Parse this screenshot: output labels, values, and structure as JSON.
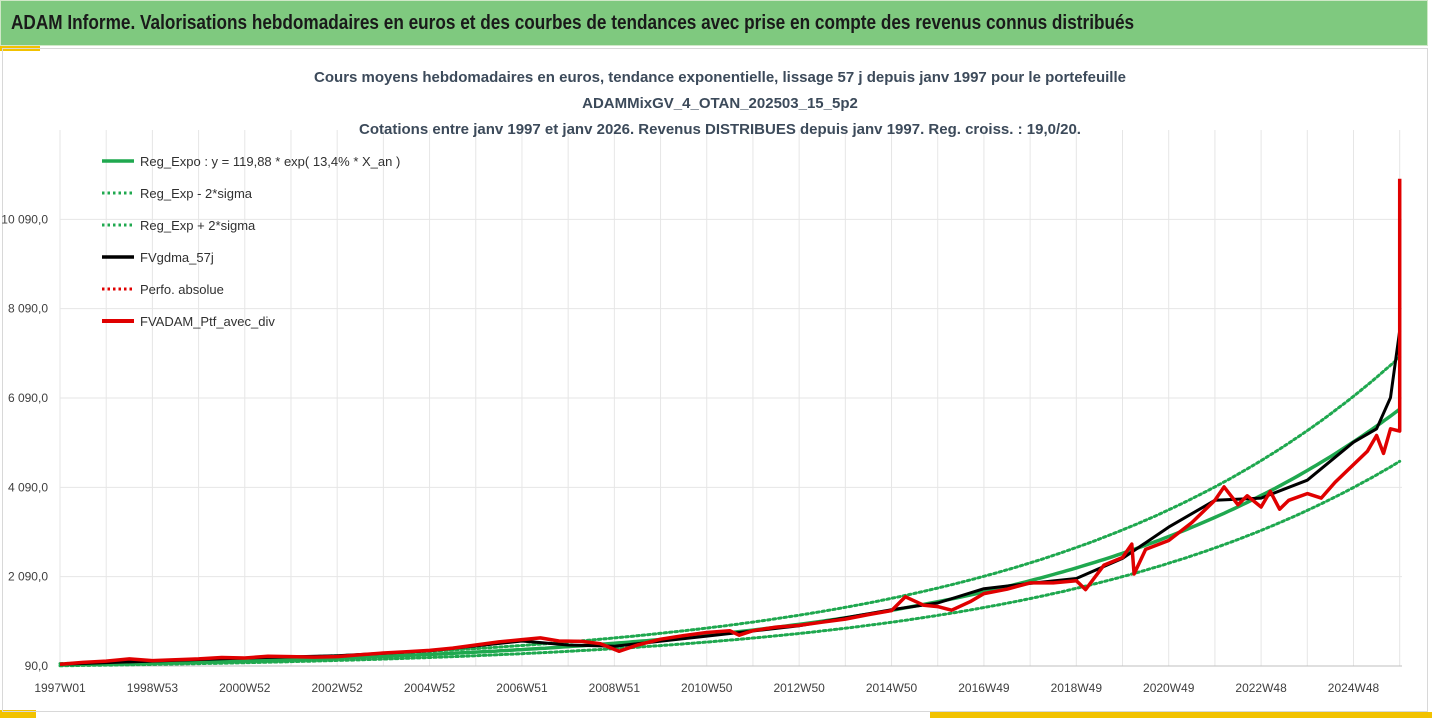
{
  "header": {
    "title": "ADAM Informe. Valorisations hebdomadaires en euros et des courbes de tendances avec prise en compte des revenus connus distribués"
  },
  "colors": {
    "green": "#1fa84f",
    "black": "#000000",
    "red": "#e00000",
    "header_bg": "#7fc97f",
    "accent": "#f2c200"
  },
  "chart_data": {
    "type": "line",
    "title_lines": [
      "Cours moyens hebdomadaires  en euros, tendance exponentielle, lissage 57 j depuis janv 1997 pour le portefeuille",
      "ADAMMixGV_4_OTAN_202503_15_5p2",
      "Cotations entre janv 1997 et janv 2026. Revenus DISTRIBUES depuis janv 1997. Reg. croiss. : 19,0/20."
    ],
    "x_range_years": [
      1997.0,
      2026.05
    ],
    "ylim": [
      90,
      12090
    ],
    "y_ticks": [
      {
        "value": 90,
        "label": "90,0"
      },
      {
        "value": 2090,
        "label": "2 090,0"
      },
      {
        "value": 4090,
        "label": "4 090,0"
      },
      {
        "value": 6090,
        "label": "6 090,0"
      },
      {
        "value": 8090,
        "label": "8 090,0"
      },
      {
        "value": 10090,
        "label": "10 090,0"
      }
    ],
    "x_ticks": [
      {
        "t": 1997.0,
        "label": "1997W01"
      },
      {
        "t": 1999.0,
        "label": "1998W53"
      },
      {
        "t": 2001.0,
        "label": "2000W52"
      },
      {
        "t": 2003.0,
        "label": "2002W52"
      },
      {
        "t": 2005.0,
        "label": "2004W52"
      },
      {
        "t": 2007.0,
        "label": "2006W51"
      },
      {
        "t": 2009.0,
        "label": "2008W51"
      },
      {
        "t": 2011.0,
        "label": "2010W50"
      },
      {
        "t": 2013.0,
        "label": "2012W50"
      },
      {
        "t": 2015.0,
        "label": "2014W50"
      },
      {
        "t": 2017.0,
        "label": "2016W49"
      },
      {
        "t": 2019.0,
        "label": "2018W49"
      },
      {
        "t": 2021.0,
        "label": "2020W49"
      },
      {
        "t": 2023.0,
        "label": "2022W48"
      },
      {
        "t": 2025.0,
        "label": "2024W48"
      }
    ],
    "grid": true,
    "legend_position": "top-left",
    "series": [
      {
        "name": "Reg_Expo : y = 119,88 * exp( 13,4% *  X_an )",
        "style": "solid-green",
        "formula": {
          "a": 119.88,
          "r": 0.134
        }
      },
      {
        "name": "Reg_Exp - 2*sigma",
        "style": "dotted-green",
        "factor": 0.8
      },
      {
        "name": "Reg_Exp + 2*sigma",
        "style": "dotted-green",
        "factor": 1.2
      },
      {
        "name": "FVgdma_57j",
        "style": "solid-black",
        "points": [
          [
            1997.0,
            130
          ],
          [
            1999.0,
            200
          ],
          [
            2001.0,
            270
          ],
          [
            2003.0,
            320
          ],
          [
            2005.0,
            430
          ],
          [
            2007.0,
            650
          ],
          [
            2008.0,
            560
          ],
          [
            2009.0,
            530
          ],
          [
            2011.0,
            760
          ],
          [
            2013.0,
            990
          ],
          [
            2015.0,
            1350
          ],
          [
            2016.0,
            1500
          ],
          [
            2017.0,
            1820
          ],
          [
            2018.0,
            1940
          ],
          [
            2019.0,
            2050
          ],
          [
            2020.0,
            2500
          ],
          [
            2021.0,
            3200
          ],
          [
            2022.0,
            3800
          ],
          [
            2023.0,
            3850
          ],
          [
            2024.0,
            4250
          ],
          [
            2025.0,
            5100
          ],
          [
            2025.5,
            5400
          ],
          [
            2025.8,
            6100
          ],
          [
            2026.0,
            7600
          ]
        ]
      },
      {
        "name": "Perfo. absolue",
        "style": "dotted-red"
      },
      {
        "name": "FVADAM_Ptf_avec_div",
        "style": "solid-red",
        "points": [
          [
            1997.0,
            130
          ],
          [
            1997.5,
            170
          ],
          [
            1998.0,
            200
          ],
          [
            1998.5,
            250
          ],
          [
            1999.0,
            210
          ],
          [
            1999.5,
            230
          ],
          [
            2000.0,
            250
          ],
          [
            2000.5,
            280
          ],
          [
            2001.0,
            270
          ],
          [
            2001.5,
            310
          ],
          [
            2002.0,
            300
          ],
          [
            2002.5,
            290
          ],
          [
            2003.0,
            300
          ],
          [
            2003.5,
            340
          ],
          [
            2004.0,
            380
          ],
          [
            2004.5,
            410
          ],
          [
            2005.0,
            440
          ],
          [
            2005.5,
            490
          ],
          [
            2006.0,
            560
          ],
          [
            2006.5,
            630
          ],
          [
            2007.0,
            680
          ],
          [
            2007.4,
            720
          ],
          [
            2007.8,
            650
          ],
          [
            2008.3,
            640
          ],
          [
            2008.7,
            590
          ],
          [
            2009.1,
            420
          ],
          [
            2009.5,
            560
          ],
          [
            2010.0,
            690
          ],
          [
            2010.5,
            770
          ],
          [
            2011.0,
            840
          ],
          [
            2011.5,
            880
          ],
          [
            2011.7,
            780
          ],
          [
            2012.0,
            880
          ],
          [
            2012.5,
            960
          ],
          [
            2013.0,
            1000
          ],
          [
            2013.5,
            1070
          ],
          [
            2014.0,
            1140
          ],
          [
            2014.5,
            1240
          ],
          [
            2015.0,
            1330
          ],
          [
            2015.3,
            1640
          ],
          [
            2015.7,
            1450
          ],
          [
            2016.0,
            1420
          ],
          [
            2016.3,
            1340
          ],
          [
            2016.7,
            1530
          ],
          [
            2017.0,
            1710
          ],
          [
            2017.5,
            1810
          ],
          [
            2018.0,
            1950
          ],
          [
            2018.5,
            1950
          ],
          [
            2019.0,
            2000
          ],
          [
            2019.2,
            1800
          ],
          [
            2019.6,
            2350
          ],
          [
            2020.0,
            2520
          ],
          [
            2020.2,
            2820
          ],
          [
            2020.25,
            2150
          ],
          [
            2020.5,
            2700
          ],
          [
            2021.0,
            2900
          ],
          [
            2021.5,
            3300
          ],
          [
            2022.0,
            3800
          ],
          [
            2022.2,
            4100
          ],
          [
            2022.5,
            3700
          ],
          [
            2022.7,
            3900
          ],
          [
            2023.0,
            3650
          ],
          [
            2023.2,
            4000
          ],
          [
            2023.4,
            3600
          ],
          [
            2023.6,
            3800
          ],
          [
            2024.0,
            3950
          ],
          [
            2024.3,
            3850
          ],
          [
            2024.6,
            4200
          ],
          [
            2024.9,
            4500
          ],
          [
            2025.3,
            4900
          ],
          [
            2025.5,
            5250
          ],
          [
            2025.65,
            4850
          ],
          [
            2025.8,
            5400
          ],
          [
            2026.0,
            5350
          ],
          [
            2026.0,
            11000
          ]
        ]
      }
    ]
  }
}
